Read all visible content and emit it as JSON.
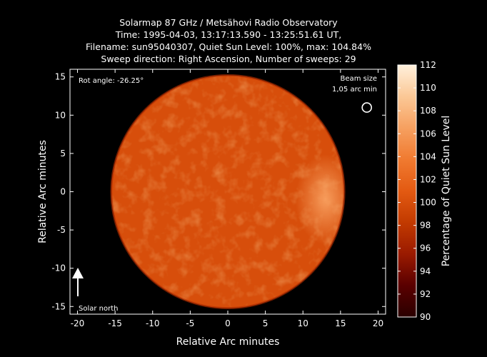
{
  "chart_data": {
    "type": "heatmap",
    "title_lines": [
      "Solarmap 87 GHz / Metsähovi Radio Observatory",
      "Time: 1995-04-03, 13:17:13.590 - 13:25:51.61 UT,",
      "Filename: sun95040307, Quiet Sun Level: 100%, max: 104.84%",
      "Sweep direction: Right Ascension, Number of sweeps: 29"
    ],
    "xlabel": "Relative Arc minutes",
    "ylabel": "Relative Arc minutes",
    "xlim": [
      -21,
      21
    ],
    "ylim": [
      -16,
      16
    ],
    "xticks": [
      -20,
      -15,
      -10,
      -5,
      0,
      5,
      10,
      15,
      20
    ],
    "yticks": [
      -15,
      -10,
      -5,
      0,
      5,
      10,
      15
    ],
    "colorbar": {
      "label": "Percentage of Quiet Sun Level",
      "min": 90,
      "max": 112,
      "ticks": [
        90,
        92,
        94,
        96,
        98,
        100,
        102,
        104,
        106,
        108,
        110,
        112
      ],
      "colors": [
        "#2a0000",
        "#5a0000",
        "#9a1a00",
        "#c23a00",
        "#e35a12",
        "#f07a30",
        "#f6a060",
        "#fbc896",
        "#fff0dc"
      ]
    },
    "disk": {
      "center_x": 0,
      "center_y": 0,
      "radius": 15.5,
      "mean_level": 100,
      "max_level": 104.84,
      "max_region_x": 13,
      "max_region_y": -1
    },
    "rot_angle_text": "Rot angle: -26.25°",
    "beam_size_text": [
      "Beam size",
      "1,05 arc min"
    ],
    "beam_size_arcmin": 1.05,
    "beam_marker_x": 18.5,
    "beam_marker_y": 11,
    "solar_north_text": "Solar north"
  }
}
